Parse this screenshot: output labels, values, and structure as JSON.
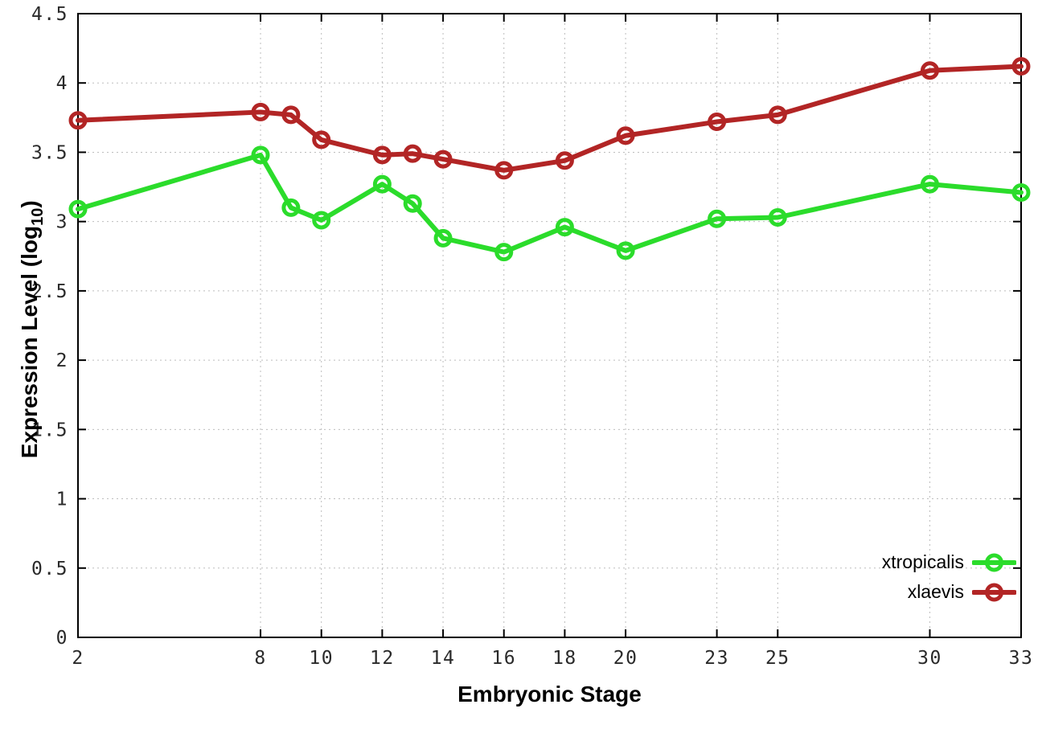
{
  "figure": {
    "background": "#ffffff",
    "border_color": "#000000",
    "grid_color": "#bdbdbd",
    "tick_text_color": "#2a2a2a"
  },
  "chart_data": {
    "type": "line",
    "title": "",
    "xlabel": "Embryonic Stage",
    "ylabel": "Expression Level (log10)",
    "ylabel_parts": {
      "pre": "Expression Level (log",
      "sub": "10",
      "post": ")"
    },
    "x": [
      2,
      8,
      9,
      10,
      12,
      13,
      14,
      16,
      18,
      20,
      23,
      25,
      30,
      33
    ],
    "series": [
      {
        "name": "xtropicalis",
        "color": "#2bdc2b",
        "values": [
          3.09,
          3.48,
          3.1,
          3.01,
          3.27,
          3.13,
          2.88,
          2.78,
          2.96,
          2.79,
          3.02,
          3.03,
          3.27,
          3.21
        ]
      },
      {
        "name": "xlaevis",
        "color": "#b22525",
        "values": [
          3.73,
          3.79,
          3.77,
          3.59,
          3.48,
          3.49,
          3.45,
          3.37,
          3.44,
          3.62,
          3.72,
          3.77,
          4.09,
          4.12
        ]
      }
    ],
    "xticks": [
      2,
      8,
      10,
      12,
      14,
      16,
      18,
      20,
      23,
      25,
      30,
      33
    ],
    "yticks": [
      0,
      0.5,
      1,
      1.5,
      2,
      2.5,
      3,
      3.5,
      4,
      4.5
    ],
    "xlim": [
      2,
      33
    ],
    "ylim": [
      0,
      4.5
    ],
    "grid": true,
    "grid_style": "dotted",
    "legend_position": "bottom-right",
    "marker": "open-circle"
  }
}
